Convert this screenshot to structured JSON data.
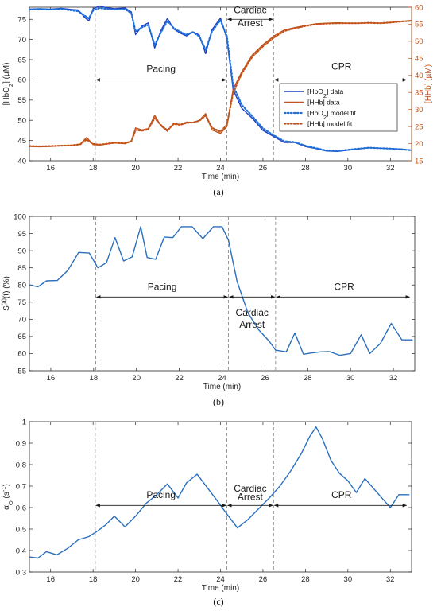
{
  "chart_data": [
    {
      "type": "line",
      "panel": "a",
      "caption": "(a)",
      "xlabel": "Time (min)",
      "ylabel": "[HbO2] (µM)",
      "ylabel_parts": [
        "[HbO",
        "2",
        "] (",
        "µ",
        "M)"
      ],
      "y2label": "[HHb] (µM)",
      "y2label_parts": [
        "[HHb] (",
        "µ",
        "M)"
      ],
      "xlim": [
        15,
        33
      ],
      "ylim": [
        40,
        78
      ],
      "y2lim": [
        15,
        60
      ],
      "xticks": [
        16,
        18,
        20,
        22,
        24,
        26,
        28,
        30,
        32
      ],
      "yticks": [
        40,
        45,
        50,
        55,
        60,
        65,
        70,
        75
      ],
      "y2ticks": [
        15,
        20,
        25,
        30,
        35,
        40,
        45,
        50,
        55,
        60
      ],
      "vlines": [
        18.1,
        24.3,
        26.5
      ],
      "annotations": [
        {
          "text": "Pacing",
          "x": 21.2,
          "y": 62
        },
        {
          "text": "Cardiac",
          "x": 25.4,
          "y": 76.5
        },
        {
          "text": "Arrest",
          "x": 25.4,
          "y": 73.3
        },
        {
          "text": "CPR",
          "x": 29.7,
          "y": 62.5
        }
      ],
      "arrows": [
        {
          "x1": 18.1,
          "x2": 24.3,
          "y": 60
        },
        {
          "x1": 24.3,
          "x2": 26.5,
          "y": 75
        },
        {
          "x1": 26.5,
          "x2": 32.8,
          "y": 60
        }
      ],
      "legend": {
        "placement": "center-right",
        "entries": [
          {
            "parts": [
              "[HbO",
              "2",
              "] data"
            ],
            "series": "HbO2 data"
          },
          {
            "parts": [
              "[HHb] data"
            ],
            "series": "HHb data"
          },
          {
            "parts": [
              "[HbO",
              "2",
              "] model fit"
            ],
            "series": "HbO2 model fit"
          },
          {
            "parts": [
              "[HHb] model fit"
            ],
            "series": "HHb model fit"
          }
        ]
      },
      "series": [
        {
          "name": "[HbO2] data",
          "axis": "left",
          "color": "#1f3fc4",
          "style": "solid",
          "x": [
            15,
            15.5,
            16,
            16.5,
            17,
            17.3,
            17.6,
            17.8,
            18,
            18.3,
            18.6,
            19,
            19.5,
            19.8,
            20,
            20.3,
            20.6,
            20.9,
            21.2,
            21.5,
            21.8,
            22.1,
            22.4,
            22.7,
            23,
            23.3,
            23.6,
            24,
            24.3,
            24.6,
            25,
            25.5,
            26,
            26.5,
            27,
            27.5,
            28,
            28.5,
            29,
            29.5,
            30,
            30.5,
            31,
            31.5,
            32,
            32.5,
            33
          ],
          "values": [
            77.5,
            77.6,
            77.5,
            77.7,
            77.4,
            77.3,
            75.5,
            74.6,
            77.6,
            78.3,
            77.9,
            77.6,
            77.8,
            76.8,
            71.2,
            73.3,
            74.1,
            67.9,
            72.3,
            75.2,
            72.6,
            71.6,
            70.9,
            71.9,
            71.1,
            66.5,
            72.4,
            75.3,
            70.2,
            57.5,
            53.0,
            50.5,
            47.5,
            46.0,
            44.5,
            44.5,
            43.5,
            43.0,
            42.4,
            42.3,
            42.6,
            42.9,
            43.2,
            43.1,
            43.0,
            42.9,
            42.6
          ]
        },
        {
          "name": "[HHb] data",
          "axis": "right",
          "color": "#c0541c",
          "style": "solid",
          "x": [
            15,
            15.5,
            16,
            16.5,
            17,
            17.4,
            17.7,
            18,
            18.3,
            18.6,
            19,
            19.5,
            19.8,
            20,
            20.3,
            20.6,
            20.9,
            21.2,
            21.5,
            21.8,
            22.1,
            22.4,
            22.7,
            23,
            23.3,
            23.6,
            24,
            24.3,
            24.6,
            25,
            25.5,
            26,
            26.5,
            27,
            27.5,
            28,
            28.5,
            29,
            29.5,
            30,
            30.5,
            31,
            31.5,
            32,
            32.5,
            33
          ],
          "values": [
            19.2,
            19.1,
            19.2,
            19.4,
            19.4,
            19.9,
            21.8,
            19.7,
            19.6,
            19.9,
            20.2,
            20.0,
            20.8,
            24.6,
            24.0,
            24.4,
            28.3,
            25.2,
            23.6,
            26.0,
            25.6,
            26.3,
            26.2,
            26.8,
            28.8,
            24.0,
            23.0,
            25.0,
            36.0,
            41.0,
            46.0,
            49.0,
            51.5,
            53.3,
            54.0,
            54.6,
            55.1,
            55.3,
            55.4,
            55.3,
            55.3,
            55.4,
            55.3,
            55.5,
            55.8,
            56.1
          ]
        },
        {
          "name": "[HbO2] model fit",
          "axis": "left",
          "color": "#1f6fd6",
          "style": "dotted",
          "x": [
            15,
            15.5,
            16,
            16.5,
            17,
            17.3,
            17.6,
            17.8,
            18,
            18.3,
            18.6,
            19,
            19.5,
            19.8,
            20,
            20.3,
            20.6,
            20.9,
            21.2,
            21.5,
            21.8,
            22.1,
            22.4,
            22.7,
            23,
            23.3,
            23.6,
            24,
            24.3,
            24.6,
            25,
            25.5,
            26,
            26.5,
            27,
            27.5,
            28,
            28.5,
            29,
            29.5,
            30,
            30.5,
            31,
            31.5,
            32,
            32.5,
            33
          ],
          "values": [
            77.4,
            77.5,
            77.4,
            77.6,
            77.2,
            77.0,
            75.9,
            75.2,
            77.2,
            77.8,
            77.6,
            77.4,
            77.5,
            76.5,
            72.0,
            73.0,
            73.6,
            68.6,
            71.8,
            74.6,
            72.8,
            71.9,
            71.2,
            71.8,
            70.8,
            67.4,
            72.0,
            74.8,
            70.8,
            58.5,
            53.8,
            51.0,
            48.0,
            46.3,
            44.8,
            44.6,
            43.7,
            43.1,
            42.5,
            42.4,
            42.7,
            43.0,
            43.2,
            43.1,
            43.0,
            42.8,
            42.6
          ]
        },
        {
          "name": "[HHb] model fit",
          "axis": "right",
          "color": "#c0541c",
          "style": "dotted",
          "x": [
            15,
            15.5,
            16,
            16.5,
            17,
            17.4,
            17.7,
            18,
            18.3,
            18.6,
            19,
            19.5,
            19.8,
            20,
            20.3,
            20.6,
            20.9,
            21.2,
            21.5,
            21.8,
            22.1,
            22.4,
            22.7,
            23,
            23.3,
            23.6,
            24,
            24.3,
            24.6,
            25,
            25.5,
            26,
            26.5,
            27,
            27.5,
            28,
            28.5,
            29,
            29.5,
            30,
            30.5,
            31,
            31.5,
            32,
            32.5,
            33
          ],
          "values": [
            19.3,
            19.2,
            19.3,
            19.4,
            19.5,
            19.8,
            21.2,
            19.9,
            19.7,
            19.9,
            20.3,
            20.1,
            20.7,
            24.0,
            23.8,
            24.2,
            27.5,
            25.4,
            23.9,
            25.8,
            25.5,
            26.1,
            26.2,
            26.7,
            28.2,
            24.6,
            23.5,
            25.5,
            35.0,
            40.5,
            45.5,
            48.5,
            51.0,
            53.0,
            53.8,
            54.5,
            55.0,
            55.2,
            55.3,
            55.3,
            55.3,
            55.4,
            55.3,
            55.5,
            55.8,
            56.0
          ]
        }
      ]
    },
    {
      "type": "line",
      "panel": "b",
      "caption": "(b)",
      "xlabel": "Time (min)",
      "ylabel": "S(a)(t) (%)",
      "ylabel_parts": [
        "S",
        "(a)",
        "(t) (%)"
      ],
      "xlim": [
        15,
        33
      ],
      "ylim": [
        55,
        100
      ],
      "xticks": [
        16,
        18,
        20,
        22,
        24,
        26,
        28,
        30,
        32
      ],
      "yticks": [
        55,
        60,
        65,
        70,
        75,
        80,
        85,
        90,
        95,
        100
      ],
      "vlines": [
        18.1,
        24.3,
        26.5
      ],
      "annotations": [
        {
          "text": "Pacing",
          "x": 21.2,
          "y": 78.5
        },
        {
          "text": "Cardiac",
          "x": 25.4,
          "y": 71
        },
        {
          "text": "Arrest",
          "x": 25.4,
          "y": 67.5
        },
        {
          "text": "CPR",
          "x": 29.7,
          "y": 78.5
        }
      ],
      "arrows": [
        {
          "x1": 18.1,
          "x2": 24.3,
          "y": 76.5
        },
        {
          "x1": 24.3,
          "x2": 26.5,
          "y": 76.5
        },
        {
          "x1": 26.5,
          "x2": 32.8,
          "y": 76.5
        }
      ],
      "series": [
        {
          "name": "S(a)(t)",
          "color": "#2a6fbd",
          "style": "solid",
          "x": [
            15,
            15.4,
            15.8,
            16.3,
            16.8,
            17.3,
            17.8,
            18.2,
            18.6,
            19.0,
            19.4,
            19.8,
            20.2,
            20.5,
            20.9,
            21.3,
            21.7,
            22.1,
            22.6,
            23.1,
            23.6,
            24.0,
            24.3,
            24.7,
            25.2,
            25.7,
            26.2,
            26.5,
            27.0,
            27.4,
            27.8,
            28.2,
            28.6,
            29.0,
            29.5,
            30.0,
            30.5,
            30.9,
            31.4,
            31.9,
            32.4,
            32.9
          ],
          "values": [
            80,
            79.5,
            81.2,
            81.3,
            84.3,
            89.5,
            89.3,
            85.0,
            86.5,
            93.8,
            87.0,
            88.2,
            97.0,
            88.0,
            87.5,
            94.0,
            93.8,
            97.0,
            97.0,
            93.5,
            97.0,
            97.0,
            93.0,
            81.0,
            72.0,
            67.0,
            63.6,
            61.0,
            60.5,
            66.0,
            59.8,
            60.2,
            60.5,
            60.6,
            59.5,
            60.0,
            65.5,
            60.0,
            63.0,
            68.8,
            64.0,
            64.0
          ]
        }
      ]
    },
    {
      "type": "line",
      "panel": "c",
      "caption": "(c)",
      "xlabel": "Time (min)",
      "ylabel": "αO (s-1)",
      "ylabel_parts": [
        "α",
        "O",
        " (s",
        "-1",
        ")"
      ],
      "xlim": [
        15,
        33
      ],
      "ylim": [
        0.3,
        1.0
      ],
      "xticks": [
        16,
        18,
        20,
        22,
        24,
        26,
        28,
        30,
        32
      ],
      "yticks": [
        0.3,
        0.4,
        0.5,
        0.6,
        0.7,
        0.8,
        0.9,
        1
      ],
      "ytick_labels": [
        "0.3",
        "0.4",
        "0.5",
        "0.6",
        "0.7",
        "0.8",
        "0.9",
        "1"
      ],
      "vlines": [
        18.1,
        24.3,
        26.5
      ],
      "annotations": [
        {
          "text": "Pacing",
          "x": 21.2,
          "y": 0.645
        },
        {
          "text": "Cardiac",
          "x": 25.4,
          "y": 0.675
        },
        {
          "text": "Arrest",
          "x": 25.4,
          "y": 0.635
        },
        {
          "text": "CPR",
          "x": 29.7,
          "y": 0.645
        }
      ],
      "arrows": [
        {
          "x1": 18.1,
          "x2": 24.3,
          "y": 0.61
        },
        {
          "x1": 24.3,
          "x2": 26.5,
          "y": 0.61
        },
        {
          "x1": 26.5,
          "x2": 32.8,
          "y": 0.61
        }
      ],
      "series": [
        {
          "name": "αO",
          "color": "#2a6fbd",
          "style": "solid",
          "x": [
            15,
            15.4,
            15.8,
            16.3,
            16.8,
            17.3,
            17.8,
            18.2,
            18.6,
            19.0,
            19.5,
            20.0,
            20.5,
            21.0,
            21.5,
            22.0,
            22.4,
            22.9,
            23.4,
            23.9,
            24.3,
            24.8,
            25.3,
            25.8,
            26.3,
            26.8,
            27.3,
            27.8,
            28.2,
            28.5,
            28.8,
            29.2,
            29.6,
            30.0,
            30.4,
            30.8,
            31.2,
            31.6,
            32.0,
            32.4,
            32.9
          ],
          "values": [
            0.37,
            0.365,
            0.395,
            0.38,
            0.41,
            0.45,
            0.465,
            0.49,
            0.52,
            0.56,
            0.51,
            0.56,
            0.62,
            0.66,
            0.71,
            0.645,
            0.715,
            0.755,
            0.69,
            0.625,
            0.57,
            0.505,
            0.545,
            0.595,
            0.645,
            0.7,
            0.77,
            0.85,
            0.93,
            0.975,
            0.92,
            0.82,
            0.76,
            0.725,
            0.67,
            0.735,
            0.69,
            0.645,
            0.6,
            0.66,
            0.66
          ]
        }
      ]
    }
  ]
}
